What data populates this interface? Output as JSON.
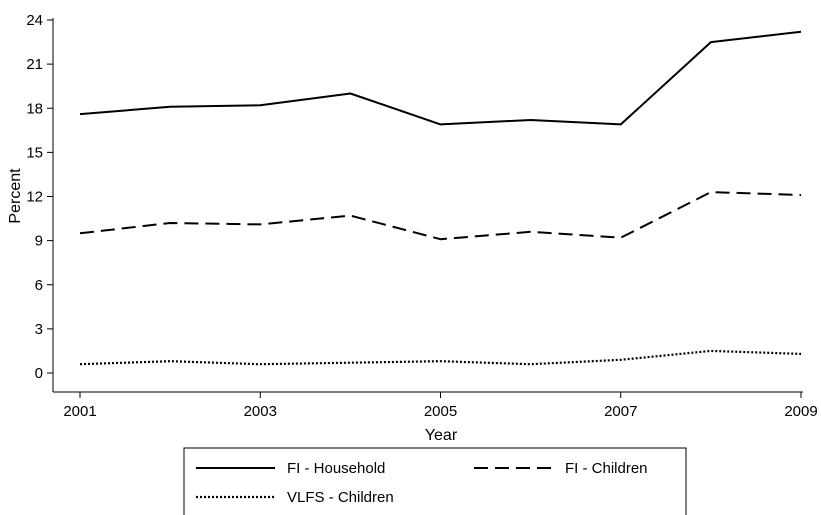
{
  "chart_data": {
    "type": "line",
    "title": "",
    "xlabel": "Year",
    "ylabel": "Percent",
    "xlim": [
      2001,
      2009
    ],
    "ylim": [
      0,
      24
    ],
    "x_ticks": [
      2001,
      2003,
      2005,
      2007,
      2009
    ],
    "y_ticks": [
      0,
      3,
      6,
      9,
      12,
      15,
      18,
      21,
      24
    ],
    "grid": false,
    "legend_position": "bottom",
    "x": [
      2001,
      2002,
      2003,
      2004,
      2005,
      2006,
      2007,
      2008,
      2009
    ],
    "series": [
      {
        "name": "FI - Household",
        "style": "solid",
        "values": [
          17.6,
          18.1,
          18.2,
          19.0,
          16.9,
          17.2,
          16.9,
          22.5,
          23.2
        ]
      },
      {
        "name": "FI - Children",
        "style": "dashed",
        "values": [
          9.5,
          10.2,
          10.1,
          10.7,
          9.1,
          9.6,
          9.2,
          12.3,
          12.1
        ]
      },
      {
        "name": "VLFS - Children",
        "style": "dotted",
        "values": [
          0.6,
          0.8,
          0.6,
          0.7,
          0.8,
          0.6,
          0.9,
          1.5,
          1.3
        ]
      }
    ],
    "colors": {
      "line": "#000000",
      "axis": "#000000",
      "background": "#ffffff"
    }
  }
}
